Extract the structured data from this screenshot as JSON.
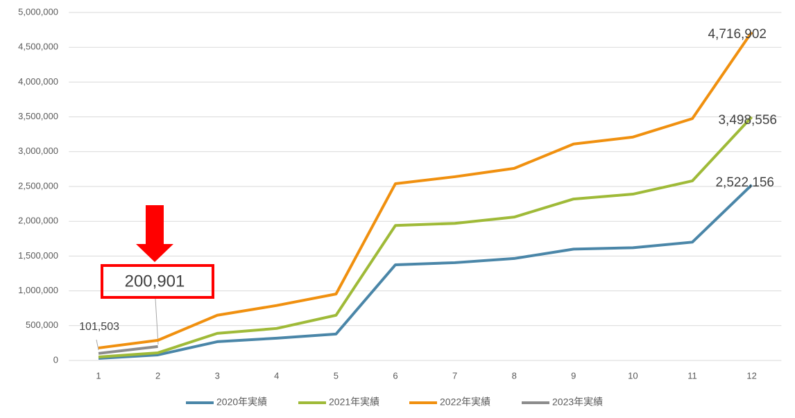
{
  "chart_data": {
    "type": "line",
    "categories": [
      "1",
      "2",
      "3",
      "4",
      "5",
      "6",
      "7",
      "8",
      "9",
      "10",
      "11",
      "12"
    ],
    "ylim": [
      0,
      5000000
    ],
    "yticks": [
      0,
      {
        "value": 500000,
        "label": "500,000"
      },
      {
        "value": 1000000,
        "label": "1,000,000"
      },
      {
        "value": 1500000,
        "label": "1,500,000"
      },
      {
        "value": 2000000,
        "label": "2,000,000"
      },
      {
        "value": 2500000,
        "label": "2,500,000"
      },
      {
        "value": 3000000,
        "label": "3,000,000"
      },
      {
        "value": 3500000,
        "label": "3,500,000"
      },
      {
        "value": 4000000,
        "label": "4,000,000"
      },
      {
        "value": 4500000,
        "label": "4,500,000"
      },
      {
        "value": 5000000,
        "label": "5,000,000"
      }
    ],
    "grid": true,
    "legend": "bottom",
    "series": [
      {
        "name": "2020年実績",
        "color": "#4a86a8",
        "values": [
          30000,
          80000,
          270000,
          320000,
          380000,
          1375000,
          1405000,
          1465000,
          1600000,
          1620000,
          1700000,
          2522156
        ],
        "value_labels": [
          null,
          null,
          null,
          null,
          null,
          null,
          null,
          null,
          null,
          null,
          null,
          "2,522,156"
        ]
      },
      {
        "name": "2021年実績",
        "color": "#9fba38",
        "values": [
          50000,
          110000,
          390000,
          460000,
          650000,
          1940000,
          1970000,
          2060000,
          2320000,
          2390000,
          2580000,
          3498556
        ],
        "value_labels": [
          null,
          null,
          null,
          null,
          null,
          null,
          null,
          null,
          null,
          null,
          null,
          "3,498,556"
        ]
      },
      {
        "name": "2022年実績",
        "color": "#f0900f",
        "values": [
          180000,
          290000,
          650000,
          790000,
          955000,
          2540000,
          2640000,
          2760000,
          3110000,
          3210000,
          3475000,
          4716902
        ],
        "value_labels": [
          null,
          null,
          null,
          null,
          null,
          null,
          null,
          null,
          null,
          null,
          null,
          "4,716,902"
        ]
      },
      {
        "name": "2023年実績",
        "color": "#8c8c8c",
        "values": [
          101503,
          200901,
          null,
          null,
          null,
          null,
          null,
          null,
          null,
          null,
          null,
          null
        ],
        "value_labels": [
          "101,503",
          "200,901",
          null,
          null,
          null,
          null,
          null,
          null,
          null,
          null,
          null,
          null
        ]
      }
    ]
  }
}
